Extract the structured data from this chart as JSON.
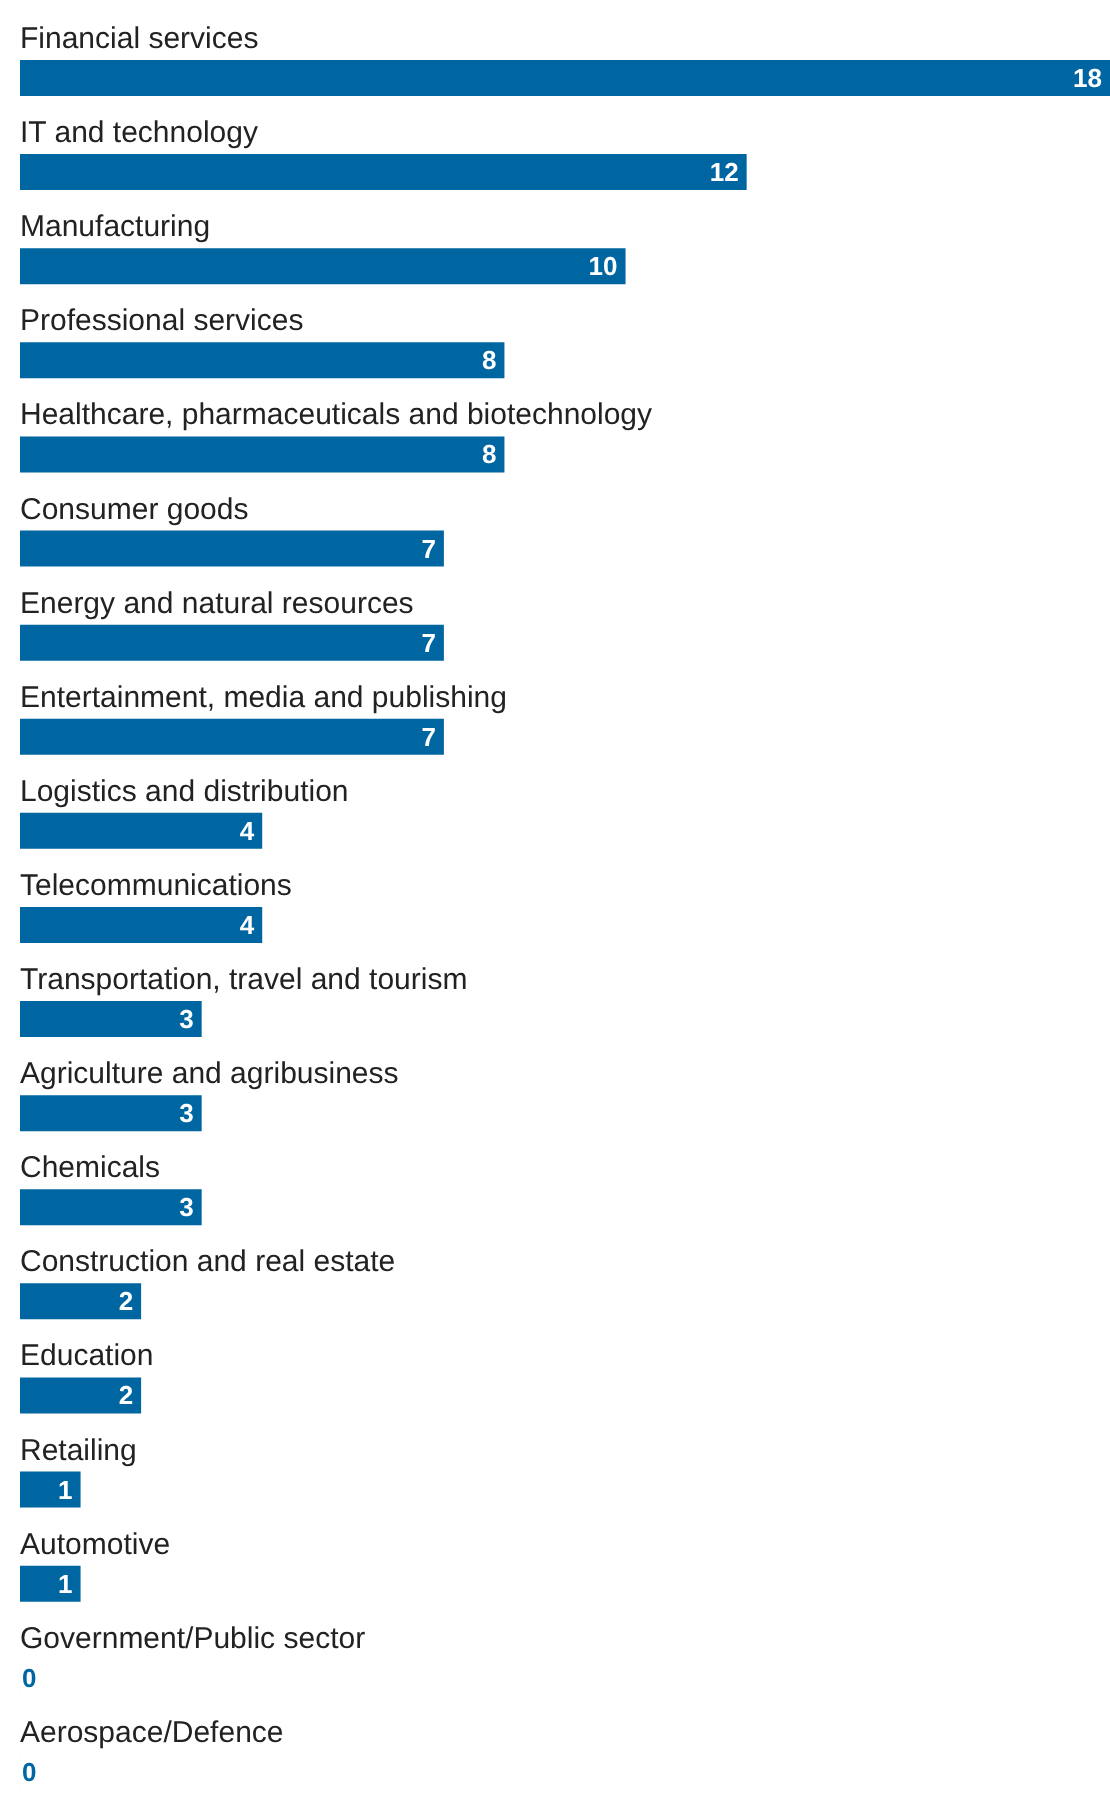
{
  "chart_data": {
    "type": "bar",
    "orientation": "horizontal",
    "data_labels": true,
    "color": "#0066a1",
    "categories": [
      "Financial services",
      "IT and technology",
      "Manufacturing",
      "Professional services",
      "Healthcare, pharmaceuticals and biotechnology",
      "Consumer goods",
      "Energy and natural resources",
      "Entertainment, media and publishing",
      "Logistics and distribution",
      "Telecommunications",
      "Transportation, travel and tourism",
      "Agriculture and agribusiness",
      "Chemicals",
      "Construction and real estate",
      "Education",
      "Retailing",
      "Automotive",
      "Government/Public sector",
      "Aerospace/Defence"
    ],
    "values": [
      18,
      12,
      10,
      8,
      8,
      7,
      7,
      7,
      4,
      4,
      3,
      3,
      3,
      2,
      2,
      1,
      1,
      0,
      0
    ]
  }
}
